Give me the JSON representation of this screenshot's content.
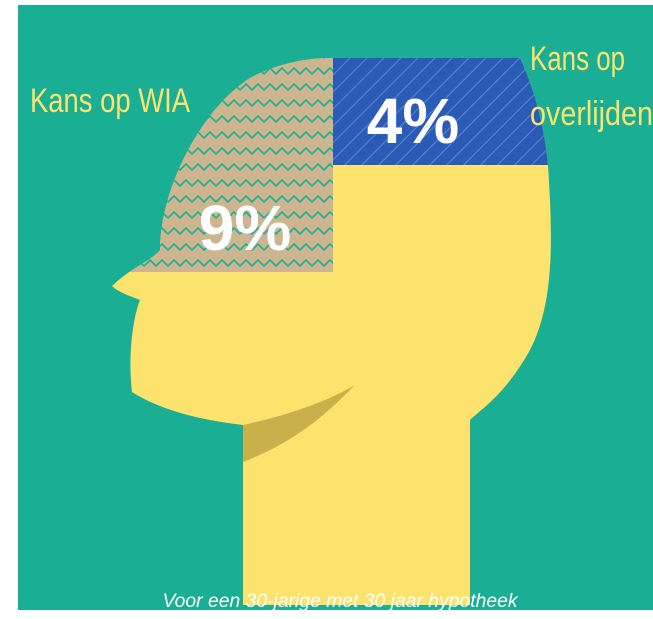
{
  "labels": {
    "wia": "Kans op WIA",
    "death": [
      "Kans op",
      "overlijden"
    ]
  },
  "percentages": {
    "wia": "9%",
    "death": "4%"
  },
  "caption": "Voor een 30-jarige met 30 jaar hypotheek"
}
